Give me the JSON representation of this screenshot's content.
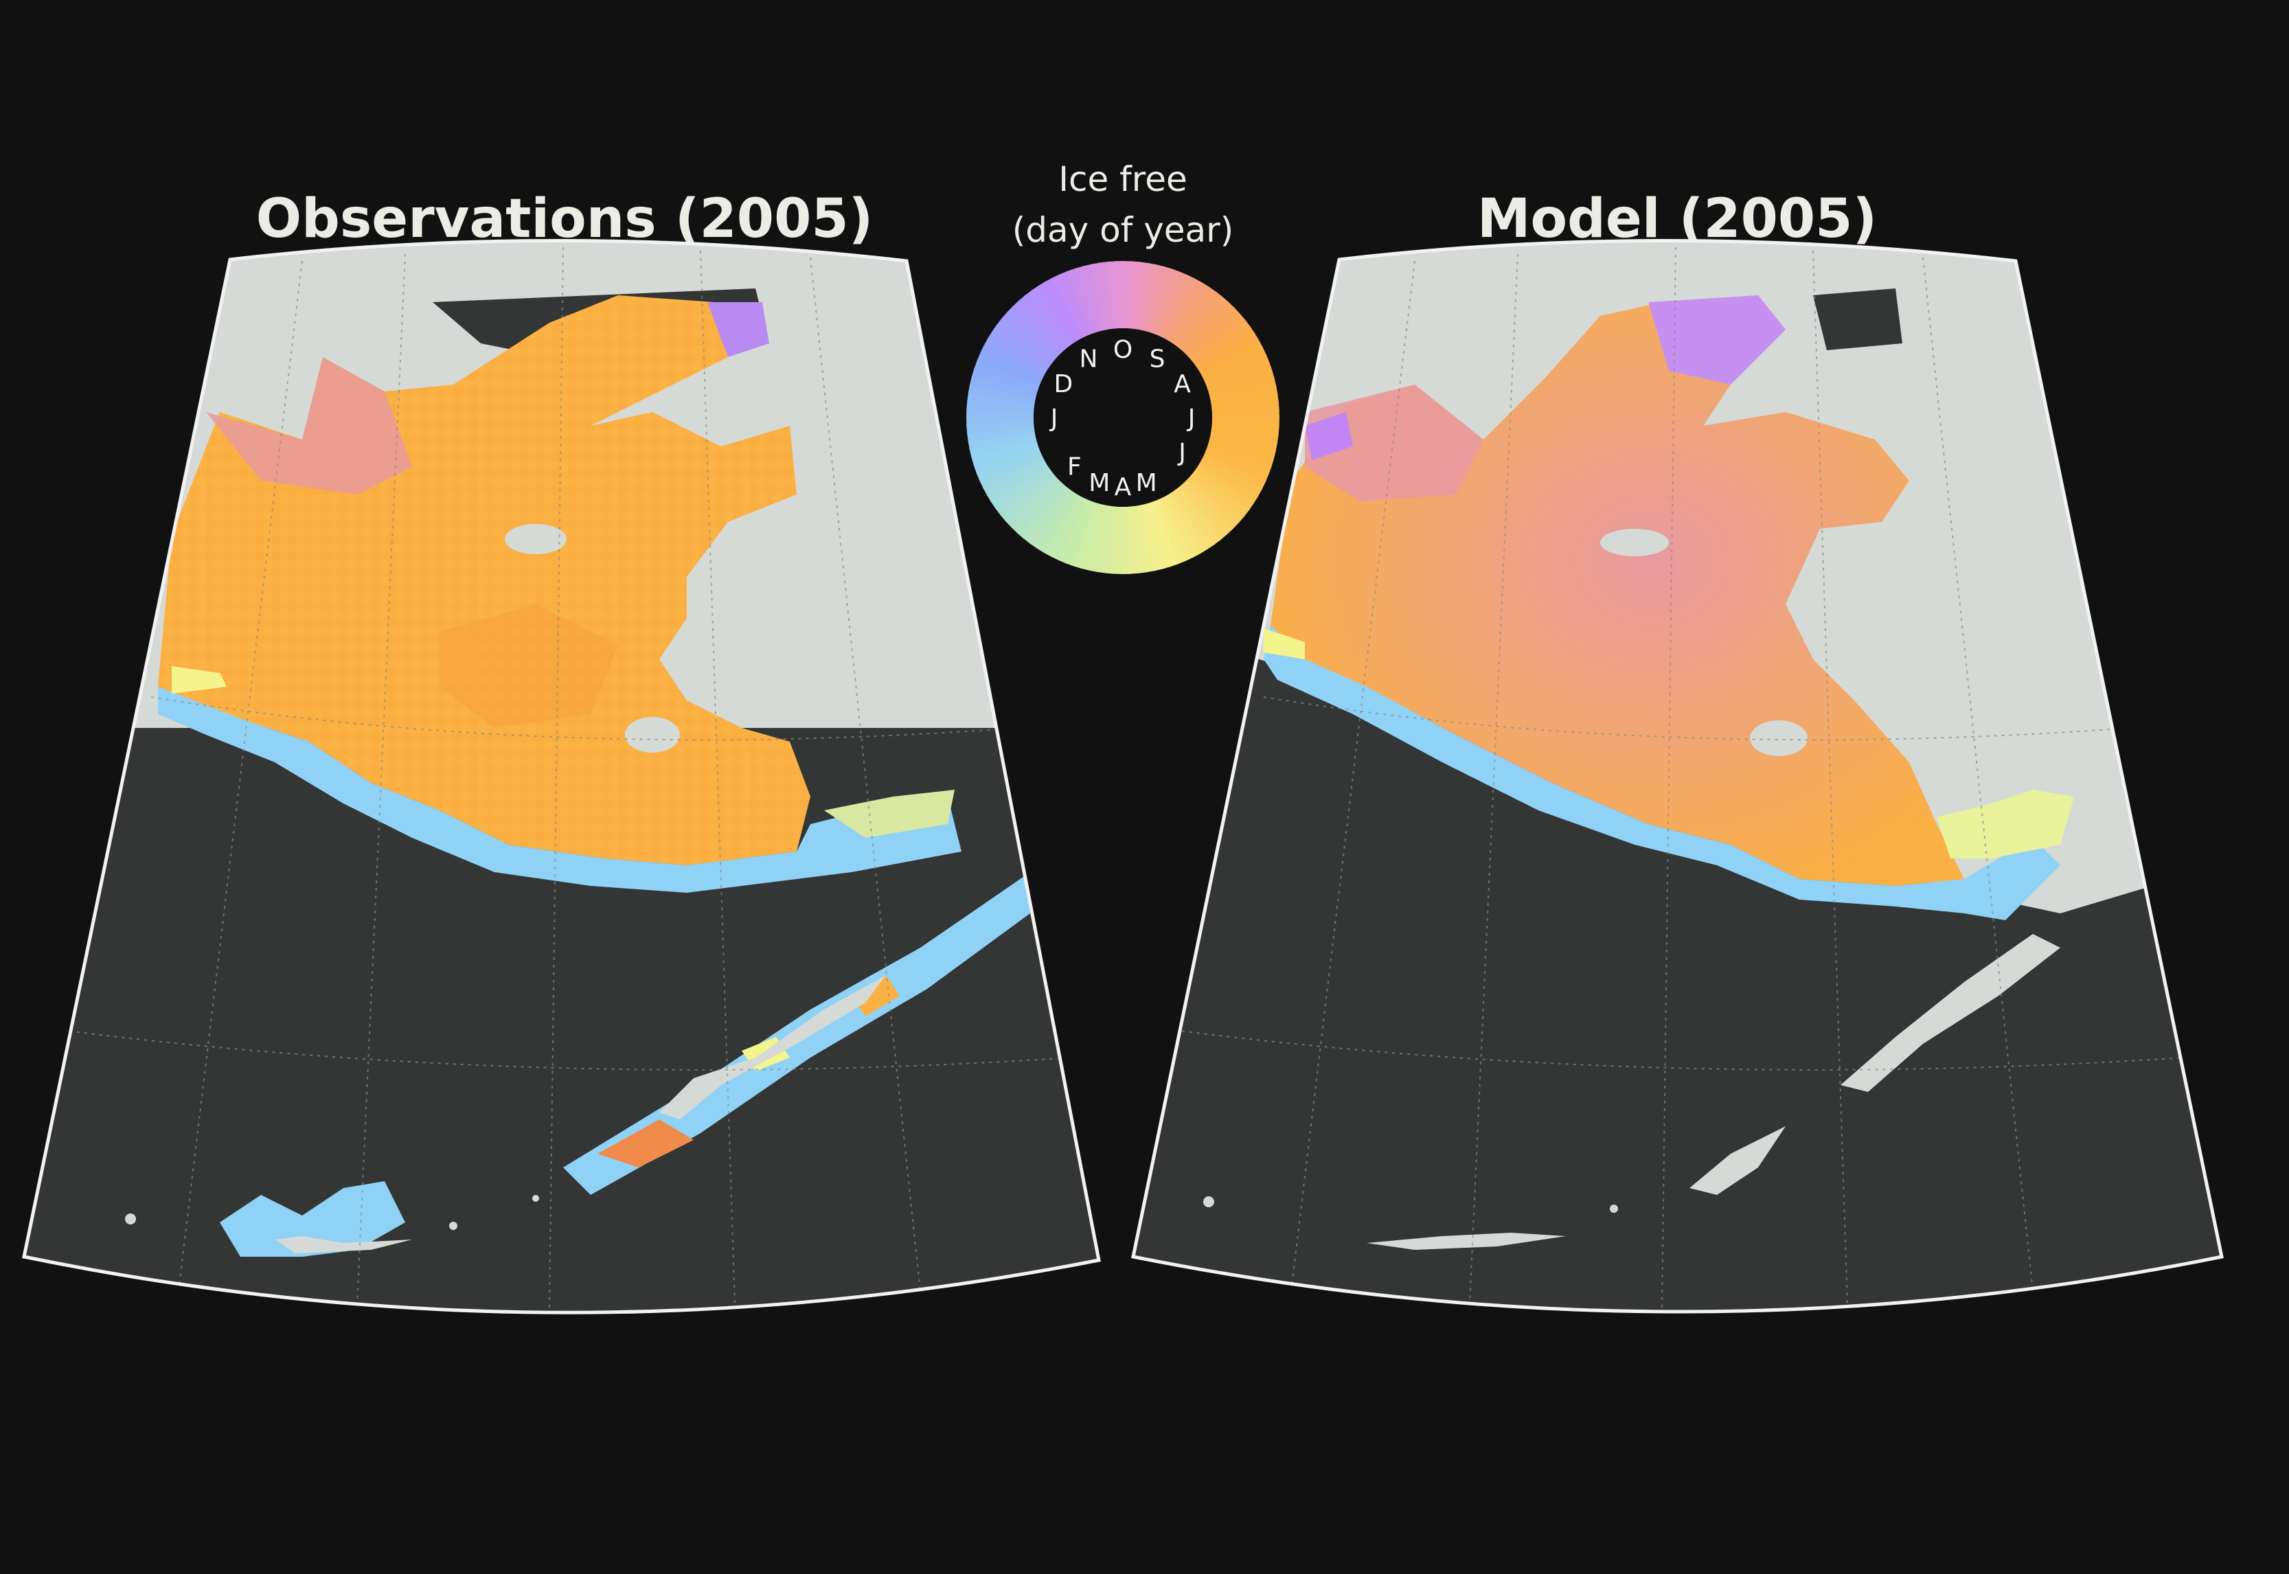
{
  "panels": [
    {
      "title": "Observations (2005)"
    },
    {
      "title": "Model (2005)"
    }
  ],
  "legend": {
    "title_line1": "Ice free",
    "title_line2": "(day of year)",
    "months": [
      "J",
      "F",
      "M",
      "A",
      "M",
      "J",
      "J",
      "A",
      "S",
      "O",
      "N",
      "D"
    ]
  },
  "colors": {
    "background": "#111111",
    "ocean": "#343535",
    "land": "#d6dad6",
    "frame": "#f2f2f2",
    "early_season_blue": "#8fd2f6",
    "spring_yellow": "#f4f48c",
    "summer_orange": "#fbb043",
    "autumn_pink": "#e69aa0",
    "late_violet": "#c186f4"
  }
}
